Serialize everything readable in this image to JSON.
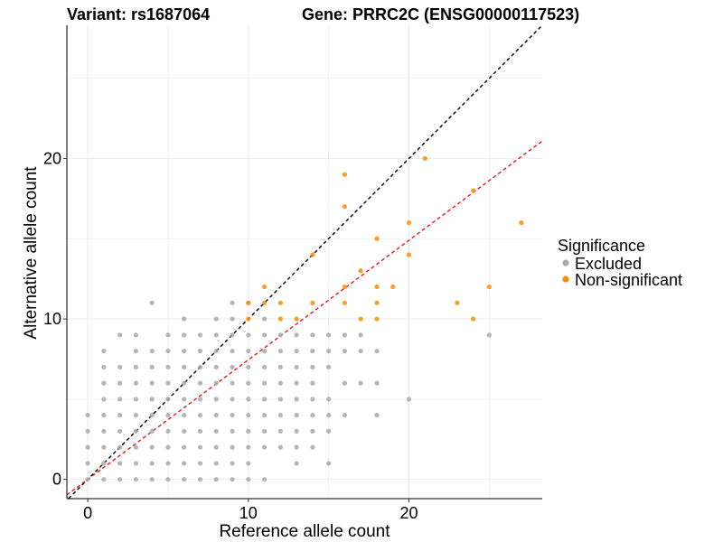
{
  "chart_data": {
    "type": "scatter",
    "title_left": "Variant: rs1687064",
    "title_right": "Gene: PRRC2C (ENSG00000117523)",
    "xlabel": "Reference allele count",
    "ylabel": "Alternative allele count",
    "xlim": [
      -1.3,
      28.3
    ],
    "ylim": [
      -1.2,
      28.3
    ],
    "x_ticks": [
      0,
      10,
      20
    ],
    "y_ticks": [
      0,
      10,
      20
    ],
    "grid": true,
    "legend_position": "right",
    "legend_title": "Significance",
    "reference_lines": [
      {
        "name": "identity",
        "slope": 1.0,
        "intercept": 0,
        "color": "#000000",
        "dash": "dashed"
      },
      {
        "name": "fit",
        "slope": 0.745,
        "intercept": 0,
        "color": "#e41a1c",
        "dash": "dashed"
      }
    ],
    "series": [
      {
        "name": "Excluded",
        "color": "#a9a9a9",
        "points": [
          [
            0,
            0
          ],
          [
            0,
            1
          ],
          [
            0,
            2
          ],
          [
            0,
            3
          ],
          [
            0,
            4
          ],
          [
            1,
            0
          ],
          [
            1,
            1
          ],
          [
            1,
            2
          ],
          [
            1,
            3
          ],
          [
            1,
            4
          ],
          [
            1,
            5
          ],
          [
            1,
            6
          ],
          [
            1,
            7
          ],
          [
            1,
            8
          ],
          [
            2,
            0
          ],
          [
            2,
            1
          ],
          [
            2,
            2
          ],
          [
            2,
            3
          ],
          [
            2,
            4
          ],
          [
            2,
            5
          ],
          [
            2,
            6
          ],
          [
            2,
            7
          ],
          [
            2,
            9
          ],
          [
            3,
            0
          ],
          [
            3,
            1
          ],
          [
            3,
            2
          ],
          [
            3,
            3
          ],
          [
            3,
            4
          ],
          [
            3,
            5
          ],
          [
            3,
            6
          ],
          [
            3,
            7
          ],
          [
            3,
            8
          ],
          [
            3,
            9
          ],
          [
            4,
            0
          ],
          [
            4,
            1
          ],
          [
            4,
            2
          ],
          [
            4,
            3
          ],
          [
            4,
            4
          ],
          [
            4,
            5
          ],
          [
            4,
            6
          ],
          [
            4,
            7
          ],
          [
            4,
            8
          ],
          [
            4,
            11
          ],
          [
            5,
            0
          ],
          [
            5,
            1
          ],
          [
            5,
            2
          ],
          [
            5,
            3
          ],
          [
            5,
            4
          ],
          [
            5,
            5
          ],
          [
            5,
            6
          ],
          [
            5,
            7
          ],
          [
            5,
            8
          ],
          [
            5,
            9
          ],
          [
            6,
            0
          ],
          [
            6,
            1
          ],
          [
            6,
            2
          ],
          [
            6,
            3
          ],
          [
            6,
            4
          ],
          [
            6,
            5
          ],
          [
            6,
            6
          ],
          [
            6,
            7
          ],
          [
            6,
            8
          ],
          [
            6,
            9
          ],
          [
            6,
            10
          ],
          [
            7,
            0
          ],
          [
            7,
            1
          ],
          [
            7,
            2
          ],
          [
            7,
            3
          ],
          [
            7,
            4
          ],
          [
            7,
            5
          ],
          [
            7,
            6
          ],
          [
            7,
            7
          ],
          [
            7,
            8
          ],
          [
            7,
            9
          ],
          [
            8,
            0
          ],
          [
            8,
            1
          ],
          [
            8,
            2
          ],
          [
            8,
            3
          ],
          [
            8,
            4
          ],
          [
            8,
            5
          ],
          [
            8,
            6
          ],
          [
            8,
            7
          ],
          [
            8,
            8
          ],
          [
            8,
            9
          ],
          [
            8,
            10
          ],
          [
            9,
            0
          ],
          [
            9,
            1
          ],
          [
            9,
            2
          ],
          [
            9,
            3
          ],
          [
            9,
            4
          ],
          [
            9,
            5
          ],
          [
            9,
            6
          ],
          [
            9,
            7
          ],
          [
            9,
            8
          ],
          [
            9,
            9
          ],
          [
            9,
            10
          ],
          [
            9,
            11
          ],
          [
            10,
            0
          ],
          [
            10,
            1
          ],
          [
            10,
            2
          ],
          [
            10,
            3
          ],
          [
            10,
            4
          ],
          [
            10,
            5
          ],
          [
            10,
            6
          ],
          [
            10,
            7
          ],
          [
            10,
            8
          ],
          [
            10,
            9
          ],
          [
            10,
            11
          ],
          [
            11,
            0
          ],
          [
            11,
            2
          ],
          [
            11,
            3
          ],
          [
            11,
            4
          ],
          [
            11,
            5
          ],
          [
            11,
            6
          ],
          [
            11,
            7
          ],
          [
            11,
            8
          ],
          [
            11,
            9
          ],
          [
            11,
            10
          ],
          [
            12,
            2
          ],
          [
            12,
            3
          ],
          [
            12,
            4
          ],
          [
            12,
            5
          ],
          [
            12,
            6
          ],
          [
            12,
            7
          ],
          [
            12,
            8
          ],
          [
            12,
            9
          ],
          [
            13,
            1
          ],
          [
            13,
            2
          ],
          [
            13,
            3
          ],
          [
            13,
            4
          ],
          [
            13,
            5
          ],
          [
            13,
            6
          ],
          [
            13,
            7
          ],
          [
            13,
            8
          ],
          [
            13,
            9
          ],
          [
            14,
            2
          ],
          [
            14,
            3
          ],
          [
            14,
            4
          ],
          [
            14,
            5
          ],
          [
            14,
            6
          ],
          [
            14,
            7
          ],
          [
            14,
            8
          ],
          [
            14,
            9
          ],
          [
            15,
            1
          ],
          [
            15,
            3
          ],
          [
            15,
            4
          ],
          [
            15,
            5
          ],
          [
            15,
            7
          ],
          [
            15,
            8
          ],
          [
            15,
            9
          ],
          [
            16,
            4
          ],
          [
            16,
            6
          ],
          [
            16,
            8
          ],
          [
            16,
            9
          ],
          [
            17,
            6
          ],
          [
            17,
            8
          ],
          [
            17,
            9
          ],
          [
            18,
            4
          ],
          [
            18,
            6
          ],
          [
            18,
            8
          ],
          [
            20,
            5
          ],
          [
            25,
            9
          ]
        ]
      },
      {
        "name": "Non-significant",
        "color": "#ff8c00",
        "points": [
          [
            10,
            10
          ],
          [
            10,
            11
          ],
          [
            11,
            11
          ],
          [
            11,
            12
          ],
          [
            12,
            10
          ],
          [
            12,
            11
          ],
          [
            13,
            10
          ],
          [
            14,
            11
          ],
          [
            14,
            14
          ],
          [
            16,
            11
          ],
          [
            16,
            12
          ],
          [
            16,
            17
          ],
          [
            16,
            19
          ],
          [
            17,
            10
          ],
          [
            17,
            13
          ],
          [
            18,
            10
          ],
          [
            18,
            11
          ],
          [
            18,
            12
          ],
          [
            18,
            15
          ],
          [
            19,
            12
          ],
          [
            20,
            14
          ],
          [
            20,
            16
          ],
          [
            21,
            20
          ],
          [
            23,
            11
          ],
          [
            24,
            10
          ],
          [
            24,
            18
          ],
          [
            25,
            12
          ],
          [
            27,
            16
          ]
        ]
      }
    ]
  }
}
